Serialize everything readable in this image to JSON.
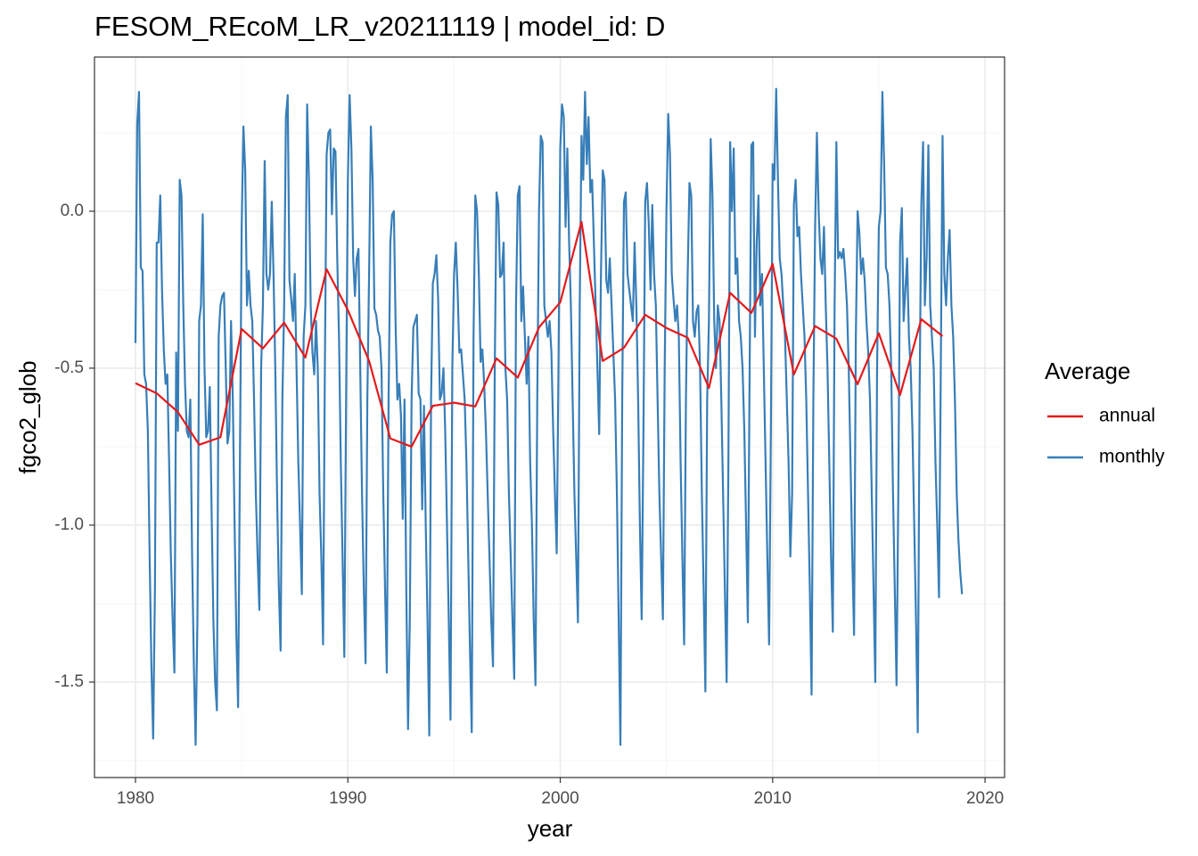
{
  "chart_data": {
    "type": "line",
    "title": "FESOM_REcoM_LR_v20211119 | model_id: D",
    "x_label": "year",
    "y_label": "fgco2_glob",
    "legend_title": "Average",
    "legend": "right",
    "grid": true,
    "xlim": [
      1978.07,
      2020.92
    ],
    "xticks": [
      1980,
      1990,
      2000,
      2010,
      2020
    ],
    "ylim": [
      -1.804,
      0.491
    ],
    "yticks": [
      {
        "value": -1.5,
        "label": "-1.5"
      },
      {
        "value": -1,
        "label": "-1.0"
      },
      {
        "value": -0.5,
        "label": "-0.5"
      },
      {
        "value": 0,
        "label": "0.0"
      }
    ],
    "series": [
      {
        "name": "annual",
        "color": "#e41a1c",
        "x": [
          1980,
          1981,
          1982,
          1983,
          1984,
          1985,
          1986,
          1987,
          1988,
          1989,
          1990,
          1991,
          1992,
          1993,
          1994,
          1995,
          1996,
          1997,
          1998,
          1999,
          2000,
          2001,
          2002,
          2003,
          2004,
          2005,
          2006,
          2007,
          2008,
          2009,
          2010,
          2011,
          2012,
          2013,
          2014,
          2015,
          2016,
          2017,
          2018
        ],
        "values": [
          -0.548,
          -0.58,
          -0.64,
          -0.744,
          -0.72,
          -0.375,
          -0.437,
          -0.355,
          -0.466,
          -0.185,
          -0.315,
          -0.477,
          -0.724,
          -0.75,
          -0.62,
          -0.61,
          -0.622,
          -0.469,
          -0.53,
          -0.37,
          -0.29,
          -0.034,
          -0.477,
          -0.435,
          -0.33,
          -0.372,
          -0.403,
          -0.563,
          -0.26,
          -0.324,
          -0.168,
          -0.52,
          -0.366,
          -0.406,
          -0.551,
          -0.389,
          -0.585,
          -0.344,
          -0.398
        ]
      },
      {
        "name": "monthly",
        "color": "#377eb8",
        "x": [
          1980,
          1980.083,
          1980.167,
          1980.25,
          1980.333,
          1980.417,
          1980.5,
          1980.583,
          1980.667,
          1980.75,
          1980.833,
          1980.917,
          1981,
          1981.083,
          1981.167,
          1981.25,
          1981.333,
          1981.417,
          1981.5,
          1981.583,
          1981.667,
          1981.75,
          1981.833,
          1981.917,
          1982,
          1982.083,
          1982.167,
          1982.25,
          1982.333,
          1982.417,
          1982.5,
          1982.583,
          1982.667,
          1982.75,
          1982.833,
          1982.917,
          1983,
          1983.083,
          1983.167,
          1983.25,
          1983.333,
          1983.417,
          1983.5,
          1983.583,
          1983.667,
          1983.75,
          1983.833,
          1983.917,
          1984,
          1984.083,
          1984.167,
          1984.25,
          1984.333,
          1984.417,
          1984.5,
          1984.583,
          1984.667,
          1984.75,
          1984.833,
          1984.917,
          1985,
          1985.083,
          1985.167,
          1985.25,
          1985.333,
          1985.417,
          1985.5,
          1985.583,
          1985.667,
          1985.75,
          1985.833,
          1985.917,
          1986,
          1986.083,
          1986.167,
          1986.25,
          1986.333,
          1986.417,
          1986.5,
          1986.583,
          1986.667,
          1986.75,
          1986.833,
          1986.917,
          1987,
          1987.083,
          1987.167,
          1987.25,
          1987.333,
          1987.417,
          1987.5,
          1987.583,
          1987.667,
          1987.75,
          1987.833,
          1987.917,
          1988,
          1988.083,
          1988.167,
          1988.25,
          1988.333,
          1988.417,
          1988.5,
          1988.583,
          1988.667,
          1988.75,
          1988.833,
          1988.917,
          1989,
          1989.083,
          1989.167,
          1989.25,
          1989.333,
          1989.417,
          1989.5,
          1989.583,
          1989.667,
          1989.75,
          1989.833,
          1989.917,
          1990,
          1990.083,
          1990.167,
          1990.25,
          1990.333,
          1990.417,
          1990.5,
          1990.583,
          1990.667,
          1990.75,
          1990.833,
          1990.917,
          1991,
          1991.083,
          1991.167,
          1991.25,
          1991.333,
          1991.417,
          1991.5,
          1991.583,
          1991.667,
          1991.75,
          1991.833,
          1991.917,
          1992,
          1992.083,
          1992.167,
          1992.25,
          1992.333,
          1992.417,
          1992.5,
          1992.583,
          1992.667,
          1992.75,
          1992.833,
          1992.917,
          1993,
          1993.083,
          1993.167,
          1993.25,
          1993.333,
          1993.417,
          1993.5,
          1993.583,
          1993.667,
          1993.75,
          1993.833,
          1993.917,
          1994,
          1994.083,
          1994.167,
          1994.25,
          1994.333,
          1994.417,
          1994.5,
          1994.583,
          1994.667,
          1994.75,
          1994.833,
          1994.917,
          1995,
          1995.083,
          1995.167,
          1995.25,
          1995.333,
          1995.417,
          1995.5,
          1995.583,
          1995.667,
          1995.75,
          1995.833,
          1995.917,
          1996,
          1996.083,
          1996.167,
          1996.25,
          1996.333,
          1996.417,
          1996.5,
          1996.583,
          1996.667,
          1996.75,
          1996.833,
          1996.917,
          1997,
          1997.083,
          1997.167,
          1997.25,
          1997.333,
          1997.417,
          1997.5,
          1997.583,
          1997.667,
          1997.75,
          1997.833,
          1997.917,
          1998,
          1998.083,
          1998.167,
          1998.25,
          1998.333,
          1998.417,
          1998.5,
          1998.583,
          1998.667,
          1998.75,
          1998.833,
          1998.917,
          1999,
          1999.083,
          1999.167,
          1999.25,
          1999.333,
          1999.417,
          1999.5,
          1999.583,
          1999.667,
          1999.75,
          1999.833,
          1999.917,
          2000,
          2000.083,
          2000.167,
          2000.25,
          2000.333,
          2000.417,
          2000.5,
          2000.583,
          2000.667,
          2000.75,
          2000.833,
          2000.917,
          2001,
          2001.083,
          2001.167,
          2001.25,
          2001.333,
          2001.417,
          2001.5,
          2001.583,
          2001.667,
          2001.75,
          2001.833,
          2001.917,
          2002,
          2002.083,
          2002.167,
          2002.25,
          2002.333,
          2002.417,
          2002.5,
          2002.583,
          2002.667,
          2002.75,
          2002.833,
          2002.917,
          2003,
          2003.083,
          2003.167,
          2003.25,
          2003.333,
          2003.417,
          2003.5,
          2003.583,
          2003.667,
          2003.75,
          2003.833,
          2003.917,
          2004,
          2004.083,
          2004.167,
          2004.25,
          2004.333,
          2004.417,
          2004.5,
          2004.583,
          2004.667,
          2004.75,
          2004.833,
          2004.917,
          2005,
          2005.083,
          2005.167,
          2005.25,
          2005.333,
          2005.417,
          2005.5,
          2005.583,
          2005.667,
          2005.75,
          2005.833,
          2005.917,
          2006,
          2006.083,
          2006.167,
          2006.25,
          2006.333,
          2006.417,
          2006.5,
          2006.583,
          2006.667,
          2006.75,
          2006.833,
          2006.917,
          2007,
          2007.083,
          2007.167,
          2007.25,
          2007.333,
          2007.417,
          2007.5,
          2007.583,
          2007.667,
          2007.75,
          2007.833,
          2007.917,
          2008,
          2008.083,
          2008.167,
          2008.25,
          2008.333,
          2008.417,
          2008.5,
          2008.583,
          2008.667,
          2008.75,
          2008.833,
          2008.917,
          2009,
          2009.083,
          2009.167,
          2009.25,
          2009.333,
          2009.417,
          2009.5,
          2009.583,
          2009.667,
          2009.75,
          2009.833,
          2009.917,
          2010,
          2010.083,
          2010.167,
          2010.25,
          2010.333,
          2010.417,
          2010.5,
          2010.583,
          2010.667,
          2010.75,
          2010.833,
          2010.917,
          2011,
          2011.083,
          2011.167,
          2011.25,
          2011.333,
          2011.417,
          2011.5,
          2011.583,
          2011.667,
          2011.75,
          2011.833,
          2011.917,
          2012,
          2012.083,
          2012.167,
          2012.25,
          2012.333,
          2012.417,
          2012.5,
          2012.583,
          2012.667,
          2012.75,
          2012.833,
          2012.917,
          2013,
          2013.083,
          2013.167,
          2013.25,
          2013.333,
          2013.417,
          2013.5,
          2013.583,
          2013.667,
          2013.75,
          2013.833,
          2013.917,
          2014,
          2014.083,
          2014.167,
          2014.25,
          2014.333,
          2014.417,
          2014.5,
          2014.583,
          2014.667,
          2014.75,
          2014.833,
          2014.917,
          2015,
          2015.083,
          2015.167,
          2015.25,
          2015.333,
          2015.417,
          2015.5,
          2015.583,
          2015.667,
          2015.75,
          2015.833,
          2015.917,
          2016,
          2016.083,
          2016.167,
          2016.25,
          2016.333,
          2016.417,
          2016.5,
          2016.583,
          2016.667,
          2016.75,
          2016.833,
          2016.917,
          2017,
          2017.083,
          2017.167,
          2017.25,
          2017.333,
          2017.417,
          2017.5,
          2017.583,
          2017.667,
          2017.75,
          2017.833,
          2017.917,
          2018,
          2018.083,
          2018.167,
          2018.25,
          2018.333,
          2018.417,
          2018.5,
          2018.583,
          2018.667,
          2018.75,
          2018.833,
          2018.917
        ],
        "values": [
          -0.42,
          0.28,
          0.38,
          -0.18,
          -0.19,
          -0.52,
          -0.55,
          -0.7,
          -1.1,
          -1.45,
          -1.68,
          -1.2,
          -0.1,
          -0.1,
          0.05,
          -0.25,
          -0.44,
          -0.55,
          -0.52,
          -0.8,
          -1.1,
          -1.3,
          -1.47,
          -0.45,
          -0.7,
          0.1,
          0.05,
          -0.3,
          -0.55,
          -0.7,
          -0.72,
          -0.6,
          -1.1,
          -1.45,
          -1.7,
          -1.3,
          -0.35,
          -0.3,
          -0.01,
          -0.5,
          -0.72,
          -0.7,
          -0.56,
          -0.95,
          -1.3,
          -1.5,
          -1.59,
          -0.4,
          -0.3,
          -0.27,
          -0.26,
          -0.5,
          -0.74,
          -0.7,
          -0.35,
          -0.6,
          -1,
          -1.35,
          -1.58,
          -0.8,
          -0.05,
          0.27,
          0.13,
          -0.3,
          -0.19,
          -0.3,
          -0.35,
          -0.6,
          -0.9,
          -1.1,
          -1.27,
          -0.5,
          -0.3,
          0.16,
          -0.2,
          -0.25,
          -0.2,
          0.03,
          -0.2,
          -0.5,
          -0.9,
          -1.2,
          -1.4,
          -0.6,
          -0.3,
          0.3,
          0.37,
          -0.22,
          -0.28,
          -0.35,
          -0.2,
          -0.5,
          -0.8,
          -1,
          -1.22,
          -0.4,
          -0.3,
          0.34,
          0.1,
          -0.3,
          -0.45,
          -0.52,
          -0.35,
          -0.5,
          -0.9,
          -1.1,
          -1.38,
          -0.5,
          0.18,
          0.25,
          0.26,
          -0.01,
          0.2,
          0.19,
          -0.15,
          -0.4,
          -0.8,
          -1.1,
          -1.42,
          -0.6,
          0.1,
          0.37,
          0.2,
          -0.15,
          -0.27,
          -0.15,
          -0.12,
          -0.5,
          -0.9,
          -1.2,
          -1.44,
          -0.6,
          -0.2,
          0.27,
          0.1,
          -0.31,
          -0.33,
          -0.38,
          -0.4,
          -0.5,
          -0.9,
          -1.2,
          -1.47,
          -0.6,
          -0.1,
          -0.01,
          0,
          -0.37,
          -0.6,
          -0.55,
          -0.65,
          -0.98,
          -0.6,
          -1.2,
          -1.65,
          -1.3,
          -0.6,
          -0.37,
          -0.35,
          -0.33,
          -0.58,
          -0.6,
          -0.95,
          -0.62,
          -1,
          -1.3,
          -1.67,
          -0.6,
          -0.23,
          -0.2,
          -0.14,
          -0.28,
          -0.6,
          -0.58,
          -0.5,
          -0.7,
          -1,
          -1.3,
          -1.62,
          -0.5,
          -0.2,
          -0.1,
          -0.25,
          -0.45,
          -0.44,
          -0.52,
          -0.6,
          -0.8,
          -1.1,
          -1.4,
          -1.66,
          -0.4,
          0.05,
          0,
          -0.2,
          -0.48,
          -0.44,
          -0.55,
          -0.7,
          -0.9,
          -1.1,
          -1.3,
          -1.45,
          -0.5,
          0.06,
          0.02,
          -0.21,
          -0.2,
          -0.1,
          -0.5,
          -0.6,
          -0.9,
          -1.1,
          -1.3,
          -1.49,
          -0.3,
          0.05,
          0.08,
          -0.35,
          -0.24,
          -0.4,
          -0.55,
          -0.4,
          -0.8,
          -1,
          -1.3,
          -1.51,
          -0.6,
          0,
          0.24,
          0.22,
          -0.3,
          -0.35,
          -0.4,
          -0.35,
          -0.45,
          -0.7,
          -0.9,
          -1.09,
          -0.5,
          0.2,
          0.34,
          0.3,
          -0.05,
          0.2,
          -0.1,
          -0.3,
          -0.6,
          -0.9,
          -1.1,
          -1.31,
          -0.3,
          0.24,
          0.1,
          0.38,
          0.15,
          0.3,
          0.06,
          0.1,
          -0.1,
          -0.3,
          -0.5,
          -0.71,
          -0.2,
          0.13,
          0.1,
          -0.22,
          -0.26,
          -0.15,
          -0.3,
          -0.45,
          -0.6,
          -0.9,
          -1.3,
          -1.7,
          -0.6,
          0.03,
          0.06,
          -0.2,
          -0.25,
          -0.3,
          -0.35,
          -0.1,
          -0.3,
          -0.6,
          -1,
          -1.3,
          -0.7,
          0.03,
          0.09,
          -0.04,
          -0.25,
          0.02,
          -0.2,
          -0.3,
          -0.6,
          -0.9,
          -1.1,
          -1.3,
          -0.5,
          0,
          0.31,
          0.18,
          -0.2,
          -0.28,
          -0.35,
          -0.3,
          -0.4,
          -0.8,
          -1.1,
          -1.38,
          -0.6,
          -0.2,
          0.09,
          0.05,
          -0.35,
          -0.4,
          -0.32,
          -0.3,
          -0.5,
          -0.9,
          -1.2,
          -1.53,
          -0.6,
          -0.35,
          0.23,
          0.05,
          -0.35,
          -0.5,
          -0.3,
          -0.35,
          -0.6,
          -0.9,
          -1.2,
          -1.5,
          -0.8,
          0.22,
          0,
          0.2,
          -0.2,
          -0.15,
          -0.35,
          -0.4,
          -0.5,
          -0.7,
          -1,
          -1.31,
          -0.5,
          0.21,
          0.22,
          -0.4,
          -0.1,
          0.05,
          -0.3,
          -0.2,
          -0.5,
          -0.8,
          -1.1,
          -1.38,
          -0.7,
          0.15,
          0.1,
          0.39,
          0.1,
          -0.15,
          -0.2,
          -0.3,
          -0.4,
          -0.6,
          -0.8,
          -1.1,
          -0.9,
          0.02,
          0.1,
          -0.08,
          -0.05,
          -0.2,
          -0.3,
          -0.4,
          -0.6,
          -0.9,
          -1.2,
          -1.54,
          -0.6,
          -0.05,
          0.25,
          0,
          -0.15,
          -0.2,
          -0.05,
          -0.3,
          -0.5,
          -0.8,
          -1.1,
          -1.34,
          -0.3,
          0.22,
          -0.15,
          -0.13,
          -0.15,
          -0.12,
          -0.2,
          -0.3,
          -0.5,
          -0.8,
          -1.1,
          -1.35,
          -0.4,
          0,
          -0.07,
          -0.2,
          -0.15,
          -0.22,
          -0.35,
          -0.45,
          -0.6,
          -0.9,
          -1.2,
          -1.5,
          -0.5,
          -0.05,
          0,
          0.38,
          0.15,
          -0.18,
          -0.2,
          -0.3,
          -0.5,
          -0.9,
          -1.2,
          -1.51,
          -0.9,
          -0.1,
          0.01,
          -0.35,
          -0.25,
          -0.15,
          -0.4,
          -0.5,
          -0.7,
          -1,
          -1.3,
          -1.66,
          -0.6,
          0.02,
          0.22,
          -0.3,
          -0.15,
          0.21,
          -0.3,
          -0.4,
          -0.5,
          -0.8,
          -1,
          -1.23,
          -0.5,
          0.24,
          -0.2,
          -0.3,
          -0.15,
          -0.06,
          -0.3,
          -0.4,
          -0.6,
          -0.9,
          -1.05,
          -1.15,
          -1.22
        ]
      }
    ]
  }
}
